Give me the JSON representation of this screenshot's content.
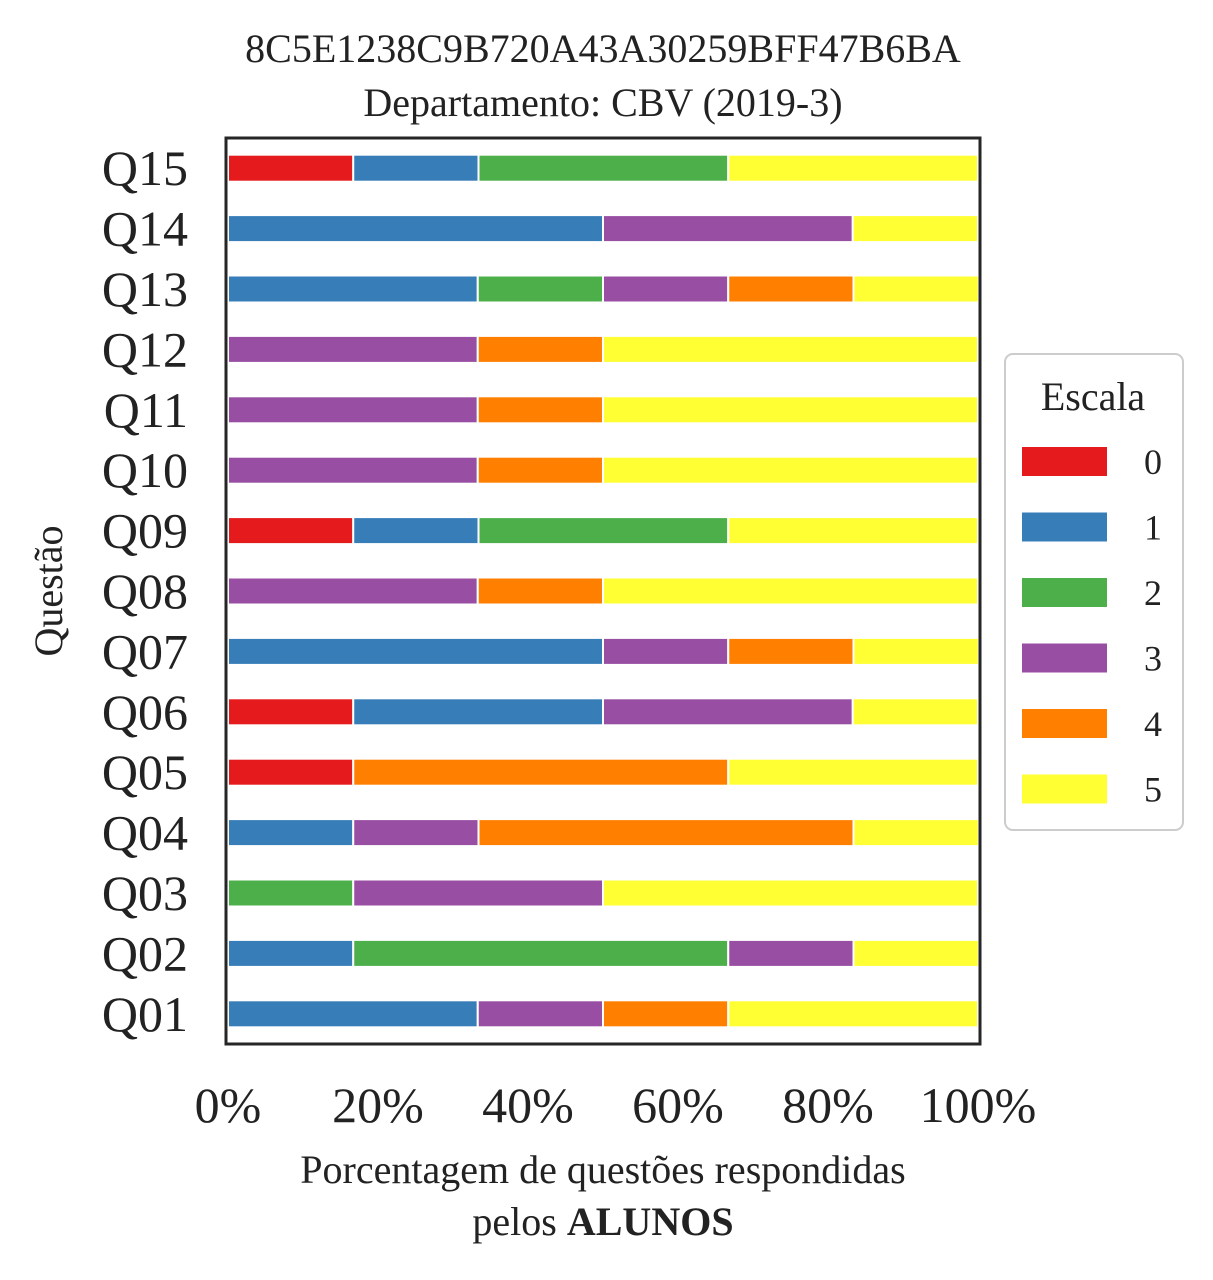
{
  "chart_data": {
    "type": "bar",
    "orientation": "horizontal",
    "stacked": true,
    "title": "8C5E1238C9B720A43A30259BFF47B6BA",
    "subtitle": "Departamento: CBV (2019-3)",
    "xlabel_line1": "Porcentagem de questões respondidas",
    "xlabel_line2_prefix": "pelos ",
    "xlabel_line2_bold": "ALUNOS",
    "ylabel": "Questão",
    "xlim": [
      0,
      100
    ],
    "x_ticks": [
      "0%",
      "20%",
      "40%",
      "60%",
      "80%",
      "100%"
    ],
    "grid": false,
    "legend_title": "Escala",
    "legend_position": "center-right",
    "categories": [
      "Q01",
      "Q02",
      "Q03",
      "Q04",
      "Q05",
      "Q06",
      "Q07",
      "Q08",
      "Q09",
      "Q10",
      "Q11",
      "Q12",
      "Q13",
      "Q14",
      "Q15"
    ],
    "series": [
      {
        "name": "0",
        "color": "#e41a1c",
        "values": [
          0,
          0,
          0,
          0,
          16.7,
          16.7,
          0,
          0,
          16.7,
          0,
          0,
          0,
          0,
          0,
          16.7
        ]
      },
      {
        "name": "1",
        "color": "#377eb8",
        "values": [
          33.3,
          16.7,
          0,
          16.7,
          0,
          33.3,
          50,
          0,
          16.7,
          0,
          0,
          0,
          33.3,
          50,
          16.7
        ]
      },
      {
        "name": "2",
        "color": "#4daf4a",
        "values": [
          0,
          50,
          16.7,
          0,
          0,
          0,
          0,
          0,
          33.3,
          0,
          0,
          0,
          16.7,
          0,
          33.3
        ]
      },
      {
        "name": "3",
        "color": "#984ea3",
        "values": [
          16.7,
          16.7,
          33.3,
          16.7,
          0,
          33.3,
          16.7,
          33.3,
          0,
          33.3,
          33.3,
          33.3,
          16.7,
          33.3,
          0
        ]
      },
      {
        "name": "4",
        "color": "#ff7f00",
        "values": [
          16.7,
          0,
          0,
          50,
          50,
          0,
          16.7,
          16.7,
          0,
          16.7,
          16.7,
          16.7,
          16.7,
          0,
          0
        ]
      },
      {
        "name": "5",
        "color": "#ffff33",
        "values": [
          33.3,
          16.7,
          50,
          16.7,
          33.3,
          16.7,
          16.7,
          50,
          33.3,
          50,
          50,
          50,
          16.7,
          16.7,
          33.3
        ]
      }
    ]
  }
}
